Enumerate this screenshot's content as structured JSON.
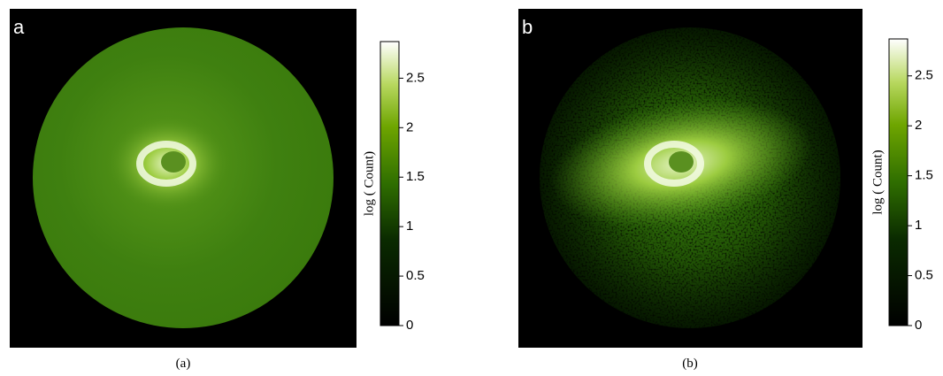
{
  "chart_data": [
    {
      "type": "image",
      "panel_label": "a",
      "caption": "(a)",
      "colorbar": {
        "label": "log ( Count)",
        "ylim": [
          0,
          2.87
        ],
        "yticks": [
          0,
          0.5,
          1,
          1.5,
          2,
          2.5
        ]
      }
    },
    {
      "type": "image",
      "panel_label": "b",
      "caption": "(b)",
      "colorbar": {
        "label": "log ( Count)",
        "ylim": [
          0,
          2.87
        ],
        "yticks": [
          0,
          0.5,
          1,
          1.5,
          2,
          2.5
        ]
      }
    }
  ]
}
